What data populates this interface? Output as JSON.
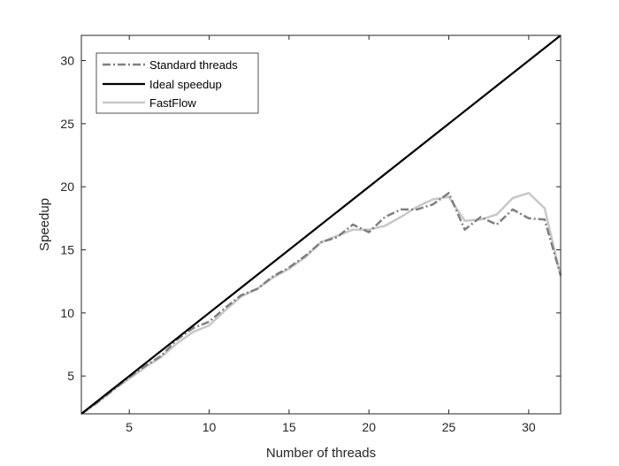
{
  "chart_data": {
    "type": "line",
    "title": "",
    "xlabel": "Number of threads",
    "ylabel": "Speedup",
    "xlim": [
      2,
      32
    ],
    "ylim": [
      2,
      32
    ],
    "xticks": [
      5,
      10,
      15,
      20,
      25,
      30
    ],
    "yticks": [
      5,
      10,
      15,
      20,
      25,
      30
    ],
    "grid": false,
    "legend_position": "top-left",
    "series": [
      {
        "name": "Standard threads",
        "color": "#7f7f7f",
        "dash": "dash-dot",
        "x": [
          2,
          3,
          4,
          5,
          6,
          7,
          8,
          9,
          10,
          11,
          12,
          13,
          14,
          15,
          16,
          17,
          18,
          19,
          20,
          21,
          22,
          23,
          24,
          25,
          26,
          27,
          28,
          29,
          30,
          31,
          32
        ],
        "y": [
          2,
          2.9,
          3.9,
          4.9,
          5.8,
          6.6,
          7.9,
          8.8,
          9.3,
          10.4,
          11.4,
          11.9,
          12.9,
          13.6,
          14.5,
          15.6,
          16,
          17,
          16.4,
          17.6,
          18.2,
          18.2,
          18.6,
          19.5,
          16.6,
          17.6,
          17,
          18.2,
          17.5,
          17.4,
          13
        ]
      },
      {
        "name": "Ideal speedup",
        "color": "#000000",
        "dash": "solid",
        "x": [
          2,
          32
        ],
        "y": [
          2,
          32
        ]
      },
      {
        "name": "FastFlow",
        "color": "#c8c8c8",
        "dash": "solid",
        "x": [
          2,
          3,
          4,
          5,
          6,
          7,
          8,
          9,
          10,
          11,
          12,
          13,
          14,
          15,
          16,
          17,
          18,
          19,
          20,
          21,
          22,
          23,
          24,
          25,
          26,
          27,
          28,
          29,
          30,
          31,
          32
        ],
        "y": [
          2,
          2.9,
          3.9,
          4.8,
          5.7,
          6.5,
          7.6,
          8.5,
          9,
          10.2,
          11.3,
          11.9,
          12.8,
          13.5,
          14.4,
          15.6,
          16.1,
          16.6,
          16.6,
          16.9,
          17.6,
          18.4,
          19,
          19.2,
          17.3,
          17.4,
          17.8,
          19.1,
          19.5,
          18.3,
          12.9
        ]
      }
    ]
  }
}
